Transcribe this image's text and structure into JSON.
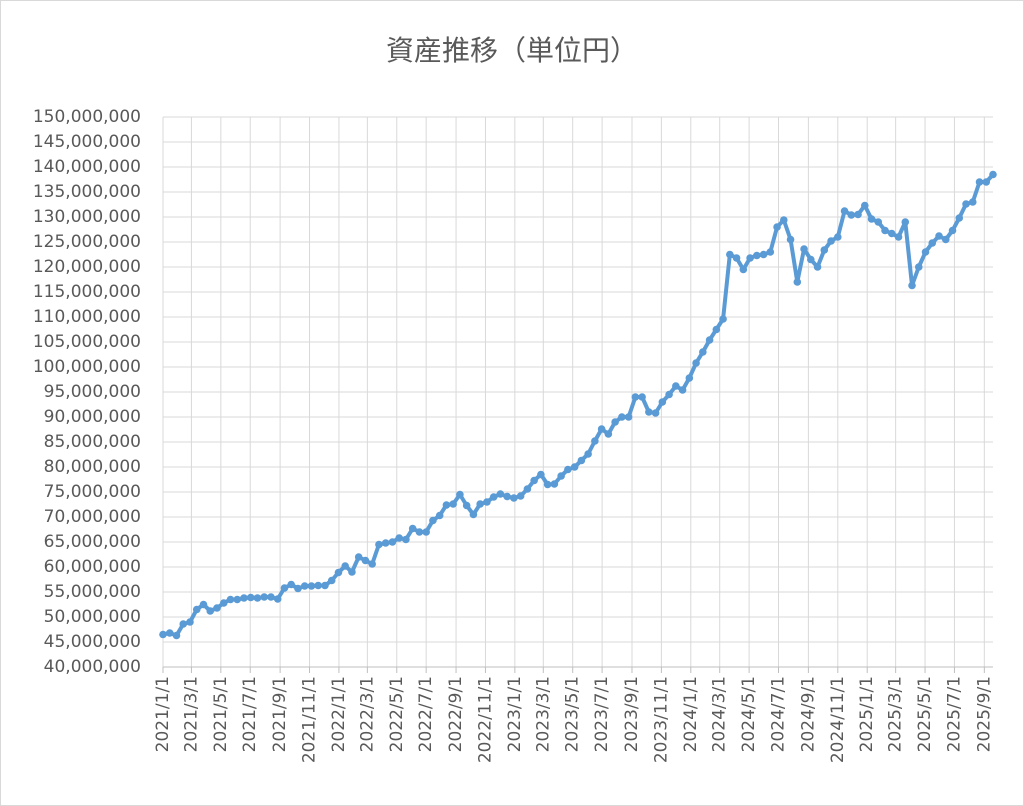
{
  "chart_data": {
    "type": "line",
    "title": "資産推移（単位円）",
    "x": [
      "2021-01-01",
      "2021-01-15",
      "2021-01-29",
      "2021-02-12",
      "2021-02-26",
      "2021-03-12",
      "2021-03-26",
      "2021-04-09",
      "2021-04-23",
      "2021-05-07",
      "2021-05-21",
      "2021-06-04",
      "2021-06-18",
      "2021-07-02",
      "2021-07-16",
      "2021-07-30",
      "2021-08-13",
      "2021-08-27",
      "2021-09-10",
      "2021-09-24",
      "2021-10-08",
      "2021-10-22",
      "2021-11-05",
      "2021-11-19",
      "2021-12-03",
      "2021-12-17",
      "2021-12-31",
      "2022-01-14",
      "2022-01-28",
      "2022-02-11",
      "2022-02-25",
      "2022-03-11",
      "2022-03-25",
      "2022-04-08",
      "2022-04-22",
      "2022-05-06",
      "2022-05-20",
      "2022-06-03",
      "2022-06-17",
      "2022-07-01",
      "2022-07-15",
      "2022-07-29",
      "2022-08-12",
      "2022-08-26",
      "2022-09-09",
      "2022-09-23",
      "2022-10-07",
      "2022-10-21",
      "2022-11-04",
      "2022-11-18",
      "2022-12-02",
      "2022-12-16",
      "2022-12-30",
      "2023-01-13",
      "2023-01-27",
      "2023-02-10",
      "2023-02-24",
      "2023-03-10",
      "2023-03-24",
      "2023-04-07",
      "2023-04-21",
      "2023-05-05",
      "2023-05-19",
      "2023-06-02",
      "2023-06-16",
      "2023-06-30",
      "2023-07-14",
      "2023-07-28",
      "2023-08-11",
      "2023-08-25",
      "2023-09-08",
      "2023-09-22",
      "2023-10-06",
      "2023-10-20",
      "2023-11-03",
      "2023-11-17",
      "2023-12-01",
      "2023-12-15",
      "2023-12-29",
      "2024-01-12",
      "2024-01-26",
      "2024-02-09",
      "2024-02-23",
      "2024-03-08",
      "2024-03-22",
      "2024-04-05",
      "2024-04-19",
      "2024-05-03",
      "2024-05-17",
      "2024-05-31",
      "2024-06-14",
      "2024-06-28",
      "2024-07-12",
      "2024-07-26",
      "2024-08-09",
      "2024-08-23",
      "2024-09-06",
      "2024-09-20",
      "2024-10-04",
      "2024-10-18",
      "2024-11-01",
      "2024-11-15",
      "2024-11-29",
      "2024-12-13",
      "2024-12-27",
      "2025-01-10",
      "2025-01-24",
      "2025-02-07",
      "2025-02-21",
      "2025-03-07",
      "2025-03-21",
      "2025-04-04",
      "2025-04-18",
      "2025-05-02",
      "2025-05-16",
      "2025-05-30",
      "2025-06-13",
      "2025-06-27",
      "2025-07-11",
      "2025-07-25",
      "2025-08-08",
      "2025-08-22",
      "2025-09-05",
      "2025-09-19"
    ],
    "values": [
      46500000,
      46800000,
      46300000,
      48600000,
      49000000,
      51500000,
      52500000,
      51200000,
      51800000,
      52800000,
      53500000,
      53500000,
      53800000,
      53900000,
      53800000,
      54000000,
      54000000,
      53600000,
      55800000,
      56500000,
      55700000,
      56200000,
      56200000,
      56300000,
      56300000,
      57300000,
      58900000,
      60200000,
      59000000,
      62000000,
      61300000,
      60600000,
      64500000,
      64800000,
      65000000,
      65800000,
      65500000,
      67700000,
      67000000,
      67000000,
      69300000,
      70300000,
      72400000,
      72600000,
      74500000,
      72300000,
      70500000,
      72600000,
      73000000,
      74000000,
      74600000,
      74100000,
      73800000,
      74200000,
      75600000,
      77300000,
      78500000,
      76500000,
      76600000,
      78200000,
      79500000,
      80000000,
      81300000,
      82600000,
      85200000,
      87600000,
      86600000,
      89000000,
      90000000,
      90000000,
      94000000,
      94000000,
      91000000,
      90800000,
      93000000,
      94500000,
      96200000,
      95400000,
      97800000,
      100800000,
      103000000,
      105400000,
      107500000,
      109600000,
      122500000,
      121800000,
      119500000,
      121800000,
      122300000,
      122500000,
      123000000,
      128000000,
      129400000,
      125500000,
      117000000,
      123600000,
      121500000,
      120000000,
      123400000,
      125200000,
      126000000,
      131200000,
      130400000,
      130500000,
      132300000,
      129600000,
      129000000,
      127300000,
      126700000,
      126000000,
      129000000,
      116300000,
      120000000,
      123000000,
      124800000,
      126200000,
      125500000,
      127300000,
      129800000,
      132600000,
      133000000,
      137000000,
      137000000,
      138500000
    ],
    "color": "#5b9bd5",
    "xlim": [
      "2021-01-01",
      "2025-09-19"
    ],
    "xticks": [
      {
        "value": "2021-01-01",
        "label": "2021/1/1"
      },
      {
        "value": "2021-03-01",
        "label": "2021/3/1"
      },
      {
        "value": "2021-05-01",
        "label": "2021/5/1"
      },
      {
        "value": "2021-07-01",
        "label": "2021/7/1"
      },
      {
        "value": "2021-09-01",
        "label": "2021/9/1"
      },
      {
        "value": "2021-11-01",
        "label": "2021/11/1"
      },
      {
        "value": "2022-01-01",
        "label": "2022/1/1"
      },
      {
        "value": "2022-03-01",
        "label": "2022/3/1"
      },
      {
        "value": "2022-05-01",
        "label": "2022/5/1"
      },
      {
        "value": "2022-07-01",
        "label": "2022/7/1"
      },
      {
        "value": "2022-09-01",
        "label": "2022/9/1"
      },
      {
        "value": "2022-11-01",
        "label": "2022/11/1"
      },
      {
        "value": "2023-01-01",
        "label": "2023/1/1"
      },
      {
        "value": "2023-03-01",
        "label": "2023/3/1"
      },
      {
        "value": "2023-05-01",
        "label": "2023/5/1"
      },
      {
        "value": "2023-07-01",
        "label": "2023/7/1"
      },
      {
        "value": "2023-09-01",
        "label": "2023/9/1"
      },
      {
        "value": "2023-11-01",
        "label": "2023/11/1"
      },
      {
        "value": "2024-01-01",
        "label": "2024/1/1"
      },
      {
        "value": "2024-03-01",
        "label": "2024/3/1"
      },
      {
        "value": "2024-05-01",
        "label": "2024/5/1"
      },
      {
        "value": "2024-07-01",
        "label": "2024/7/1"
      },
      {
        "value": "2024-09-01",
        "label": "2024/9/1"
      },
      {
        "value": "2024-11-01",
        "label": "2024/11/1"
      },
      {
        "value": "2025-01-01",
        "label": "2025/1/1"
      },
      {
        "value": "2025-03-01",
        "label": "2025/3/1"
      },
      {
        "value": "2025-05-01",
        "label": "2025/5/1"
      },
      {
        "value": "2025-07-01",
        "label": "2025/7/1"
      },
      {
        "value": "2025-09-01",
        "label": "2025/9/1"
      }
    ],
    "ylim": [
      40000000,
      150000000
    ],
    "yticks": [
      {
        "value": 40000000,
        "label": "40,000,000"
      },
      {
        "value": 45000000,
        "label": "45,000,000"
      },
      {
        "value": 50000000,
        "label": "50,000,000"
      },
      {
        "value": 55000000,
        "label": "55,000,000"
      },
      {
        "value": 60000000,
        "label": "60,000,000"
      },
      {
        "value": 65000000,
        "label": "65,000,000"
      },
      {
        "value": 70000000,
        "label": "70,000,000"
      },
      {
        "value": 75000000,
        "label": "75,000,000"
      },
      {
        "value": 80000000,
        "label": "80,000,000"
      },
      {
        "value": 85000000,
        "label": "85,000,000"
      },
      {
        "value": 90000000,
        "label": "90,000,000"
      },
      {
        "value": 95000000,
        "label": "95,000,000"
      },
      {
        "value": 100000000,
        "label": "100,000,000"
      },
      {
        "value": 105000000,
        "label": "105,000,000"
      },
      {
        "value": 110000000,
        "label": "110,000,000"
      },
      {
        "value": 115000000,
        "label": "115,000,000"
      },
      {
        "value": 120000000,
        "label": "120,000,000"
      },
      {
        "value": 125000000,
        "label": "125,000,000"
      },
      {
        "value": 130000000,
        "label": "130,000,000"
      },
      {
        "value": 135000000,
        "label": "135,000,000"
      },
      {
        "value": 140000000,
        "label": "140,000,000"
      },
      {
        "value": 145000000,
        "label": "145,000,000"
      },
      {
        "value": 150000000,
        "label": "150,000,000"
      }
    ],
    "grid": true
  }
}
